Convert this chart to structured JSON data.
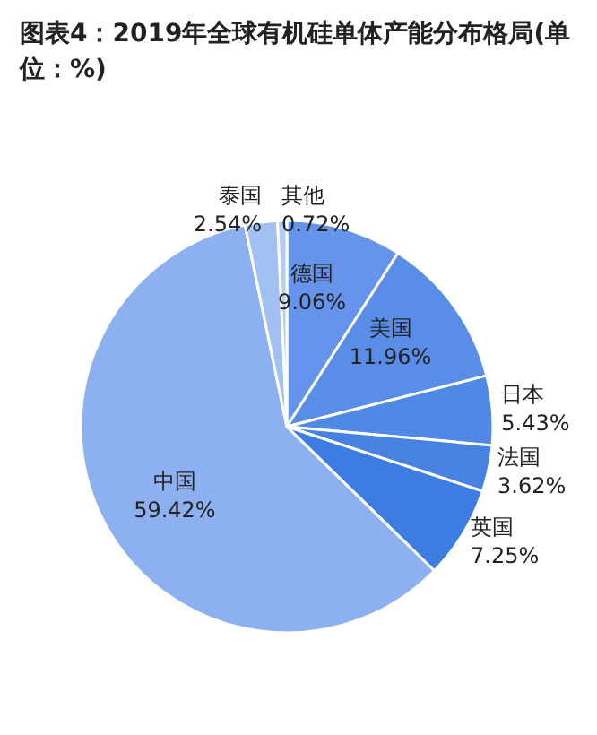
{
  "chart_data": {
    "type": "pie",
    "title": "图表4：2019年全球有机硅单体产能分布格局(单位：%)",
    "categories": [
      "德国",
      "美国",
      "日本",
      "法国",
      "英国",
      "中国",
      "泰国",
      "其他"
    ],
    "values": [
      9.06,
      11.96,
      5.43,
      3.62,
      7.25,
      59.42,
      2.54,
      0.72
    ],
    "value_labels": [
      "9.06%",
      "11.96%",
      "5.43%",
      "3.62%",
      "7.25%",
      "59.42%",
      "2.54%",
      "0.72%"
    ],
    "colors": [
      "#6594ea",
      "#5a8de8",
      "#5088e6",
      "#4782e3",
      "#3d7ce0",
      "#8db0f0",
      "#a3c0f3",
      "#b3ccf5"
    ],
    "legend": false
  }
}
